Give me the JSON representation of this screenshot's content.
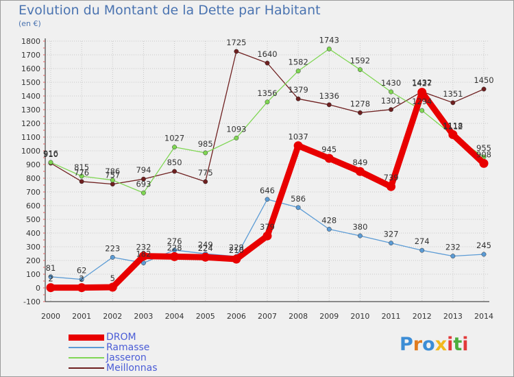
{
  "title": "Evolution du Montant de la Dette par Habitant",
  "subtitle": "(en €)",
  "logo_text": "Proxiti",
  "chart_data": {
    "type": "line",
    "title": "Evolution du Montant de la Dette par Habitant",
    "subtitle": "(en €)",
    "xlabel": "",
    "ylabel": "",
    "categories": [
      "2000",
      "2001",
      "2002",
      "2003",
      "2004",
      "2005",
      "2006",
      "2007",
      "2008",
      "2009",
      "2010",
      "2011",
      "2012",
      "2013",
      "2014"
    ],
    "ylim": [
      -100,
      1800
    ],
    "yticks": [
      -100,
      0,
      100,
      200,
      300,
      400,
      500,
      600,
      700,
      800,
      900,
      1000,
      1100,
      1200,
      1300,
      1400,
      1500,
      1600,
      1700,
      1800
    ],
    "grid": true,
    "legend_position": "bottom-left",
    "series": [
      {
        "name": "DROM",
        "color": "#e80000",
        "values": [
          2,
          2,
          5,
          232,
          228,
          224,
          210,
          379,
          1037,
          945,
          849,
          739,
          1427,
          1118,
          908
        ]
      },
      {
        "name": "Ramasse",
        "color": "#5b9bd5",
        "values": [
          81,
          62,
          223,
          182,
          276,
          249,
          229,
          646,
          586,
          428,
          380,
          327,
          274,
          232,
          245
        ]
      },
      {
        "name": "Jasseron",
        "color": "#7fd653",
        "values": [
          916,
          815,
          786,
          693,
          1027,
          985,
          1093,
          1356,
          1582,
          1743,
          1592,
          1430,
          1294,
          1112,
          955
        ]
      },
      {
        "name": "Meillonnas",
        "color": "#6e1f1f",
        "values": [
          910,
          776,
          757,
          794,
          850,
          775,
          1725,
          1640,
          1379,
          1336,
          1278,
          1301,
          1432,
          1351,
          1450
        ]
      }
    ]
  }
}
